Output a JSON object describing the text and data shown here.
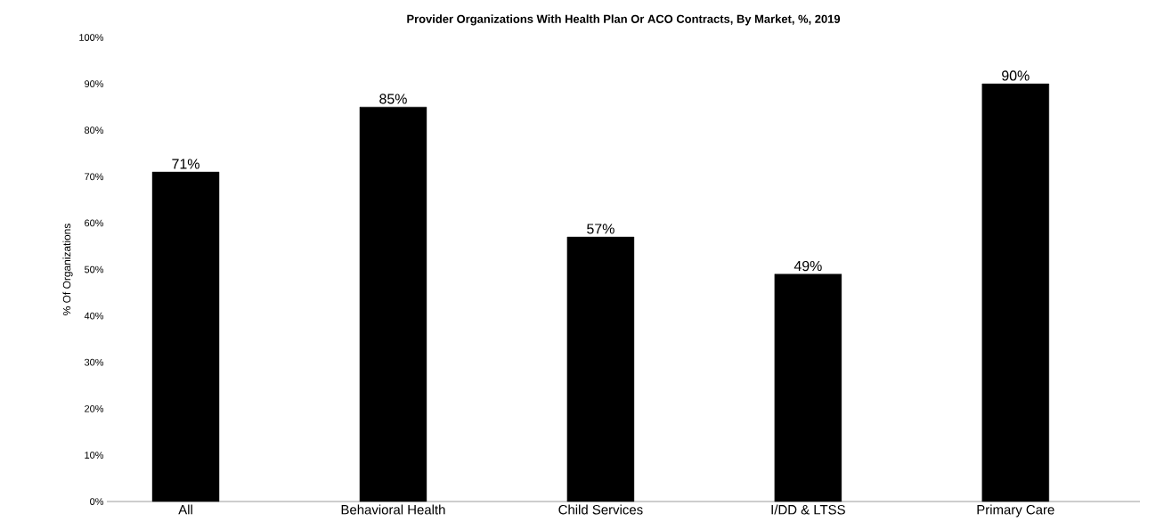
{
  "chart_data": {
    "type": "bar",
    "title": "Provider Organizations With Health Plan Or ACO Contracts, By Market, %, 2019",
    "ylabel": "% Of Organizations",
    "categories": [
      "All",
      "Behavioral Health",
      "Child Services",
      "I/DD & LTSS",
      "Primary Care"
    ],
    "values": [
      71,
      85,
      57,
      49,
      90
    ],
    "value_labels": [
      "71%",
      "85%",
      "57%",
      "49%",
      "90%"
    ],
    "color": "#000000",
    "ylim": [
      0,
      100
    ],
    "yticks": [
      {
        "value": 0,
        "label": "0%"
      },
      {
        "value": 10,
        "label": "10%"
      },
      {
        "value": 20,
        "label": "20%"
      },
      {
        "value": 30,
        "label": "30%"
      },
      {
        "value": 40,
        "label": "40%"
      },
      {
        "value": 50,
        "label": "50%"
      },
      {
        "value": 60,
        "label": "60%"
      },
      {
        "value": 70,
        "label": "70%"
      },
      {
        "value": 80,
        "label": "80%"
      },
      {
        "value": 90,
        "label": "90%"
      },
      {
        "value": 100,
        "label": "100%"
      }
    ],
    "grid": false
  }
}
